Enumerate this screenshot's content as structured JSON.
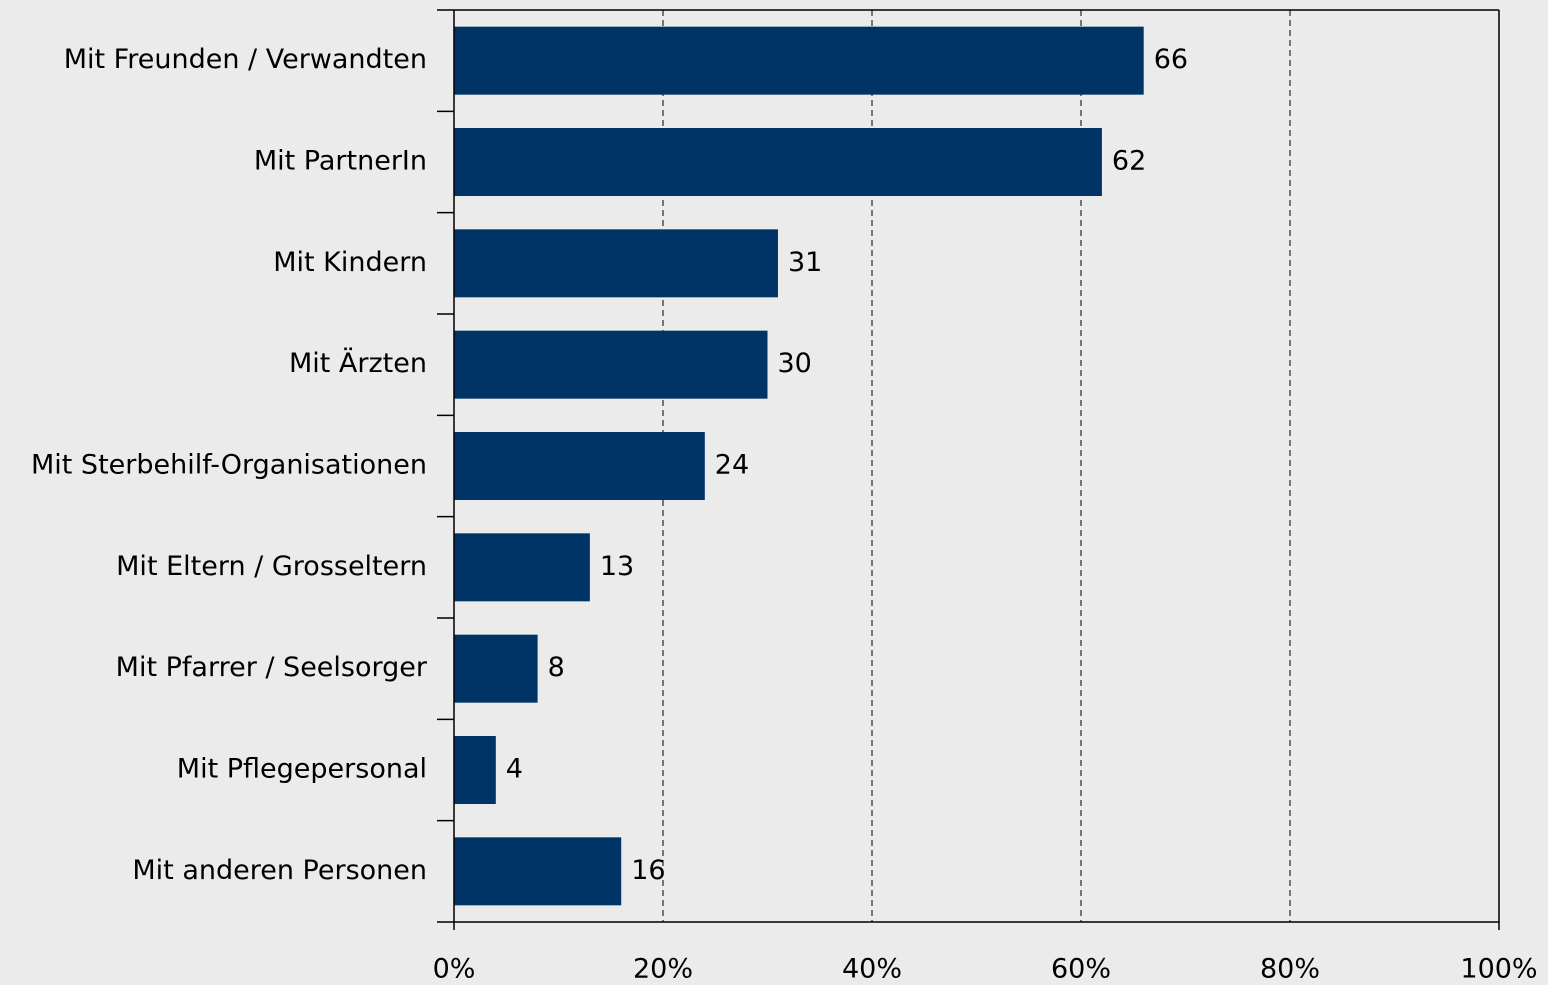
{
  "chart_data": {
    "type": "bar",
    "orientation": "horizontal",
    "categories": [
      "Mit Freunden / Verwandten",
      "Mit PartnerIn",
      "Mit Kindern",
      "Mit Ärzten",
      "Mit Sterbehilf-Organisationen",
      "Mit Eltern / Grosseltern",
      "Mit Pfarrer / Seelsorger",
      "Mit Pflegepersonal",
      "Mit anderen Personen"
    ],
    "values": [
      66,
      62,
      31,
      30,
      24,
      13,
      8,
      4,
      16
    ],
    "color": "#003366",
    "xlim": [
      0,
      100
    ],
    "xticks": [
      {
        "value": 0,
        "label": "0%"
      },
      {
        "value": 20,
        "label": "20%"
      },
      {
        "value": 40,
        "label": "40%"
      },
      {
        "value": 60,
        "label": "60%"
      },
      {
        "value": 80,
        "label": "80%"
      },
      {
        "value": 100,
        "label": "100%"
      }
    ],
    "grid": true
  }
}
